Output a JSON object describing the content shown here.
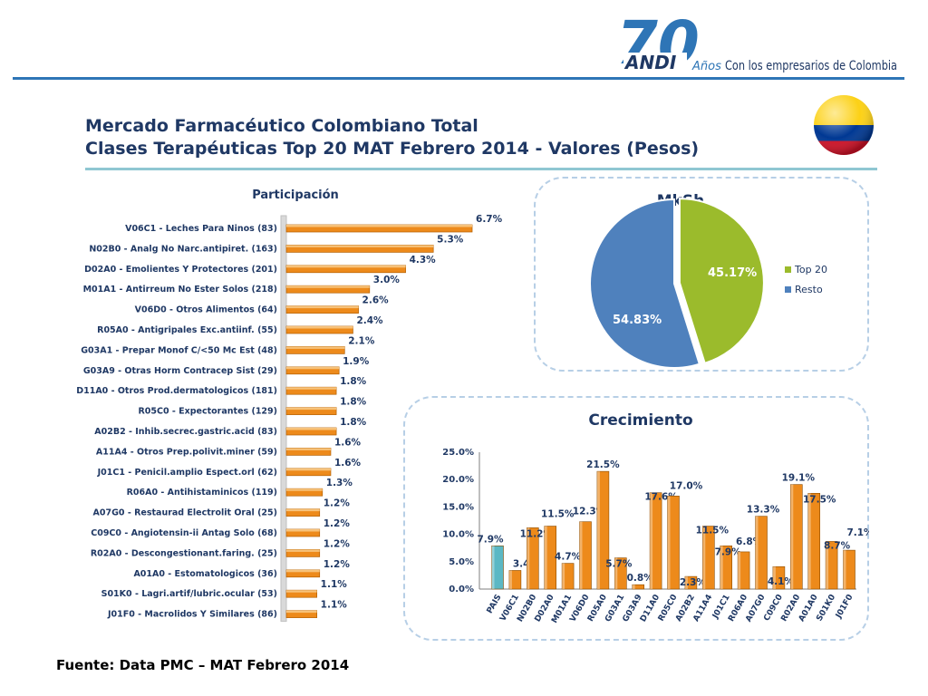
{
  "header": {
    "logo_number": "70",
    "logo_brand": "ANDI",
    "logo_anos": "Años",
    "logo_tagline": "Con los empresarios de Colombia",
    "flag_colors": [
      "#fcd116",
      "#003893",
      "#ce1126"
    ]
  },
  "title": "Mercado Farmacéutico Colombiano Total",
  "subtitle_plain": "Clases Terapéuticas Top 20 MAT Febrero 2014 - ",
  "subtitle_bold": "Valores (Pesos)",
  "source": "Fuente: Data PMC – MAT Febrero 2014",
  "colors": {
    "bar_orange": "#ed8a1b",
    "pie_top20": "#9bbb2c",
    "pie_resto": "#4f81bd",
    "pais_bar": "#5bb8c4",
    "title_blue": "#1f3864"
  },
  "chart_data": [
    {
      "type": "bar",
      "orientation": "horizontal",
      "title": "Participación",
      "categories": [
        "V06C1 - Leches Para Ninos (83)",
        "N02B0 - Analg No Narc.antipiret. (163)",
        "D02A0 - Emolientes Y Protectores (201)",
        "M01A1 - Antirreum No Ester Solos (218)",
        "V06D0 - Otros Alimentos (64)",
        "R05A0 - Antigripales Exc.antiinf. (55)",
        "G03A1 - Prepar Monof C/<50 Mc Est (48)",
        "G03A9 - Otras Horm Contracep Sist (29)",
        "D11A0 - Otros Prod.dermatologicos (181)",
        "R05C0 - Expectorantes (129)",
        "A02B2 - Inhib.secrec.gastric.acid (83)",
        "A11A4 - Otros Prep.polivit.miner (59)",
        "J01C1 - Penicil.amplio Espect.orl (62)",
        "R06A0 - Antihistaminicos (119)",
        "A07G0 - Restaurad Electrolit Oral (25)",
        "C09C0 - Angiotensin-ii Antag Solo (68)",
        "R02A0 - Descongestionant.faring. (25)",
        "A01A0 - Estomatologicos (36)",
        "S01K0 - Lagri.artif/lubric.ocular (53)",
        "J01F0 - Macrolidos Y Similares (86)"
      ],
      "values": [
        6.7,
        5.3,
        4.3,
        3.0,
        2.6,
        2.4,
        2.1,
        1.9,
        1.8,
        1.8,
        1.8,
        1.6,
        1.6,
        1.3,
        1.2,
        1.2,
        1.2,
        1.2,
        1.1,
        1.1
      ],
      "value_labels": [
        "6.7%",
        "5.3%",
        "4.3%",
        "3.0%",
        "2.6%",
        "2.4%",
        "2.1%",
        "1.9%",
        "1.8%",
        "1.8%",
        "1.8%",
        "1.6%",
        "1.6%",
        "1.3%",
        "1.2%",
        "1.2%",
        "1.2%",
        "1.2%",
        "1.1%",
        "1.1%"
      ],
      "unit": "%"
    },
    {
      "type": "pie",
      "title": "MkSh",
      "labels": [
        "Top 20",
        "Resto"
      ],
      "values": [
        45.17,
        54.83
      ],
      "value_labels": [
        "45.17%",
        "54.83%"
      ],
      "colors": [
        "#9bbb2c",
        "#4f81bd"
      ],
      "legend_position": "right"
    },
    {
      "type": "bar",
      "orientation": "vertical",
      "title": "Crecimiento",
      "categories": [
        "PAIS",
        "V06C1",
        "N02B0",
        "D02A0",
        "M01A1",
        "V06D0",
        "R05A0",
        "G03A1",
        "G03A9",
        "D11A0",
        "R05C0",
        "A02B2",
        "A11A4",
        "J01C1",
        "R06A0",
        "A07G0",
        "C09C0",
        "R02A0",
        "A01A0",
        "S01K0",
        "J01F0"
      ],
      "values": [
        7.9,
        3.4,
        11.2,
        11.5,
        4.7,
        12.3,
        21.5,
        5.7,
        0.8,
        17.6,
        17.0,
        2.3,
        11.5,
        7.9,
        6.8,
        13.3,
        4.1,
        19.1,
        17.5,
        8.7,
        7.1
      ],
      "value_labels": [
        "7.9%",
        "3.4%",
        "11.2%",
        "11.5%",
        "4.7%",
        "12.3%",
        "21.5%",
        "5.7%",
        "0.8%",
        "17.6%",
        "17.0%",
        "2.3%",
        "11.5%",
        "7.9%",
        "6.8%",
        "13.3%",
        "4.1%",
        "19.1%",
        "17.5%",
        "8.7%",
        "7.1%"
      ],
      "highlight_category": "PAIS",
      "ylim": [
        0,
        25
      ],
      "yticks": [
        "0.0%",
        "5.0%",
        "10.0%",
        "15.0%",
        "20.0%",
        "25.0%"
      ],
      "grid": false
    }
  ]
}
